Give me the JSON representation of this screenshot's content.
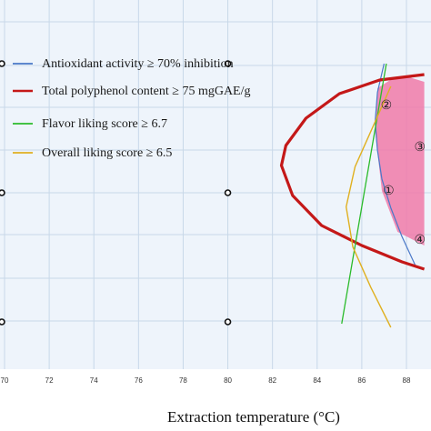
{
  "chart_data": {
    "type": "line",
    "title": "",
    "xlabel": "Extraction temperature (°C)",
    "ylabel": "",
    "xlim": [
      70,
      88.8
    ],
    "x_ticks": [
      "70",
      "72",
      "74",
      "76",
      "78",
      "80",
      "82",
      "84",
      "86",
      "88"
    ],
    "grid": true,
    "legend_placement": "top-left",
    "colors": {
      "plot_background": "#eef4fb",
      "grid": "#c8d8e8",
      "optimal_region_fill": "#f07aa8"
    },
    "series": [
      {
        "name": "Antioxidant activity ≥ 70% inhibition",
        "color": "#4a78c8",
        "x": [
          87.0,
          86.7,
          86.6,
          86.7,
          86.9,
          87.3,
          87.8,
          88.4
        ]
      },
      {
        "name": "Total polyphenol content ≥ 75 mgGAE/g",
        "color": "#c41818",
        "x": [
          88.8,
          86.8,
          85.0,
          83.5,
          82.6,
          82.4,
          82.9,
          84.2,
          86.0,
          87.8,
          88.8
        ]
      },
      {
        "name": "Flavor liking score ≥ 6.7",
        "color": "#2bbb2b",
        "x": [
          87.1,
          85.1
        ]
      },
      {
        "name": "Overall liking score ≥ 6.5",
        "color": "#e0b020",
        "x": [
          87.3,
          86.5,
          85.7,
          85.3,
          85.6,
          86.4,
          87.3
        ]
      }
    ],
    "markers": [
      {
        "x": 70.0,
        "row": 0
      },
      {
        "x": 80.0,
        "row": 0
      },
      {
        "x": 70.0,
        "row": 1
      },
      {
        "x": 80.0,
        "row": 1
      },
      {
        "x": 70.0,
        "row": 2
      },
      {
        "x": 80.0,
        "row": 2
      }
    ],
    "optimal_region": {
      "x": [
        86.7,
        87.4,
        88.0,
        88.8,
        88.8,
        87.6,
        86.9,
        86.6
      ]
    },
    "region_labels": [
      {
        "text": "①",
        "x": 87.2
      },
      {
        "text": "②",
        "x": 87.1
      },
      {
        "text": "③",
        "x": 88.6
      },
      {
        "text": "④",
        "x": 88.6
      }
    ]
  }
}
